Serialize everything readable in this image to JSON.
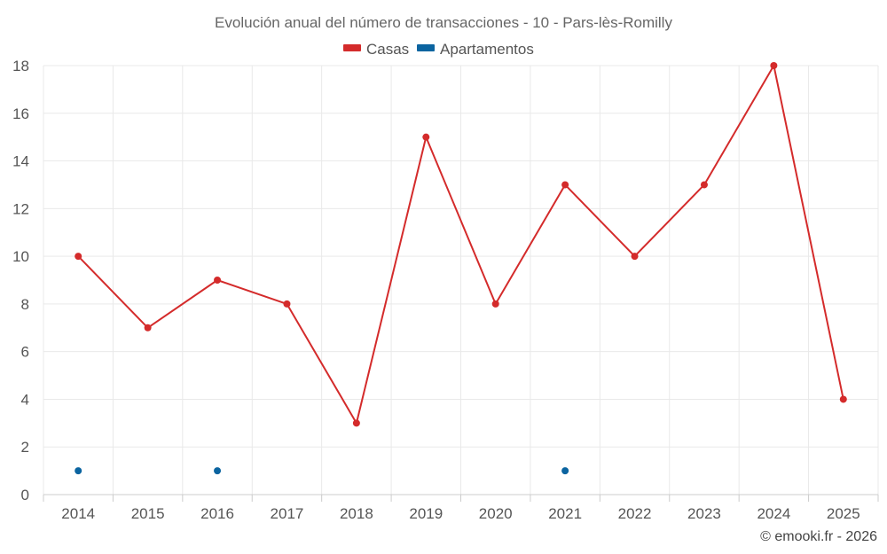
{
  "chart_data": {
    "type": "line",
    "title": "Evolución anual del número de transacciones - 10 - Pars-lès-Romilly",
    "categories": [
      "2014",
      "2015",
      "2016",
      "2017",
      "2018",
      "2019",
      "2020",
      "2021",
      "2022",
      "2023",
      "2024",
      "2025"
    ],
    "series": [
      {
        "name": "Casas",
        "color": "#d42b2b",
        "values": [
          10,
          7,
          9,
          8,
          3,
          15,
          8,
          13,
          10,
          13,
          18,
          4
        ]
      },
      {
        "name": "Apartamentos",
        "color": "#0b64a0",
        "values": [
          1,
          null,
          1,
          null,
          null,
          null,
          null,
          1,
          null,
          null,
          null,
          null
        ]
      }
    ],
    "ylim": [
      0,
      18
    ],
    "yticks": [
      0,
      2,
      4,
      6,
      8,
      10,
      12,
      14,
      16,
      18
    ],
    "xlabel": "",
    "ylabel": "",
    "grid": true,
    "legend_position": "top-center"
  },
  "footer": {
    "copyright": "© emooki.fr - 2026"
  }
}
